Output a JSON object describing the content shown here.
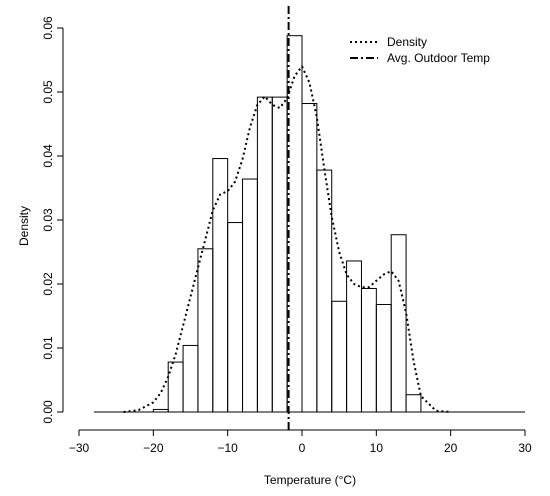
{
  "chart_data": {
    "type": "histogram",
    "xlabel": "Temperature (°C)",
    "ylabel": "Density",
    "xlim": [
      -30,
      30
    ],
    "ylim": [
      0,
      0.06
    ],
    "x_ticks": [
      -30,
      -20,
      -10,
      0,
      10,
      20,
      30
    ],
    "x_tick_labels": [
      "−30",
      "−20",
      "−10",
      "0",
      "10",
      "20",
      "30"
    ],
    "y_ticks": [
      0.0,
      0.01,
      0.02,
      0.03,
      0.04,
      0.05,
      0.06
    ],
    "y_tick_labels": [
      "0.00",
      "0.01",
      "0.02",
      "0.03",
      "0.04",
      "0.05",
      "0.06"
    ],
    "grid": false,
    "bin_width": 2,
    "bins": [
      {
        "x0": -28,
        "x1": -26,
        "value": 0.0
      },
      {
        "x0": -26,
        "x1": -24,
        "value": 0.0
      },
      {
        "x0": -24,
        "x1": -22,
        "value": 0.0
      },
      {
        "x0": -22,
        "x1": -20,
        "value": 0.0
      },
      {
        "x0": -20,
        "x1": -18,
        "value": 0.0004
      },
      {
        "x0": -18,
        "x1": -16,
        "value": 0.0078
      },
      {
        "x0": -16,
        "x1": -14,
        "value": 0.0104
      },
      {
        "x0": -14,
        "x1": -12,
        "value": 0.0255
      },
      {
        "x0": -12,
        "x1": -10,
        "value": 0.0396
      },
      {
        "x0": -10,
        "x1": -8,
        "value": 0.0296
      },
      {
        "x0": -8,
        "x1": -6,
        "value": 0.0364
      },
      {
        "x0": -6,
        "x1": -4,
        "value": 0.0492
      },
      {
        "x0": -4,
        "x1": -2,
        "value": 0.0492
      },
      {
        "x0": -2,
        "x1": 0,
        "value": 0.0588
      },
      {
        "x0": 0,
        "x1": 2,
        "value": 0.0482
      },
      {
        "x0": 2,
        "x1": 4,
        "value": 0.0378
      },
      {
        "x0": 4,
        "x1": 6,
        "value": 0.0173
      },
      {
        "x0": 6,
        "x1": 8,
        "value": 0.0236
      },
      {
        "x0": 8,
        "x1": 10,
        "value": 0.0193
      },
      {
        "x0": 10,
        "x1": 12,
        "value": 0.0168
      },
      {
        "x0": 12,
        "x1": 14,
        "value": 0.0277
      },
      {
        "x0": 14,
        "x1": 16,
        "value": 0.0027
      },
      {
        "x0": 16,
        "x1": 18,
        "value": 0.0
      },
      {
        "x0": 18,
        "x1": 20,
        "value": 0.0
      }
    ],
    "series": [
      {
        "name": "Density",
        "style": "dotted",
        "x": [
          -24,
          -22,
          -20,
          -19,
          -18,
          -17,
          -16,
          -15,
          -14,
          -13,
          -12,
          -11,
          -10,
          -9,
          -8,
          -7,
          -6,
          -5,
          -4,
          -3,
          -2,
          -1,
          0,
          1,
          2,
          3,
          4,
          5,
          6,
          7,
          8,
          9,
          10,
          11,
          12,
          13,
          14,
          15,
          16,
          18,
          20
        ],
        "y": [
          0.0,
          0.0003,
          0.0015,
          0.003,
          0.0055,
          0.009,
          0.0135,
          0.018,
          0.0225,
          0.027,
          0.0315,
          0.034,
          0.0345,
          0.036,
          0.0395,
          0.0445,
          0.048,
          0.0493,
          0.048,
          0.0475,
          0.049,
          0.0525,
          0.054,
          0.0515,
          0.046,
          0.038,
          0.0305,
          0.025,
          0.0215,
          0.02,
          0.0195,
          0.0195,
          0.0205,
          0.0215,
          0.022,
          0.0205,
          0.0155,
          0.008,
          0.0025,
          0.0002,
          0.0
        ]
      },
      {
        "name": "Avg. Outdoor Temp",
        "style": "dot-dash",
        "vline_x": -1.8
      }
    ],
    "legend": {
      "position": "top-right",
      "entries": [
        "Density",
        "Avg. Outdoor Temp"
      ]
    }
  }
}
